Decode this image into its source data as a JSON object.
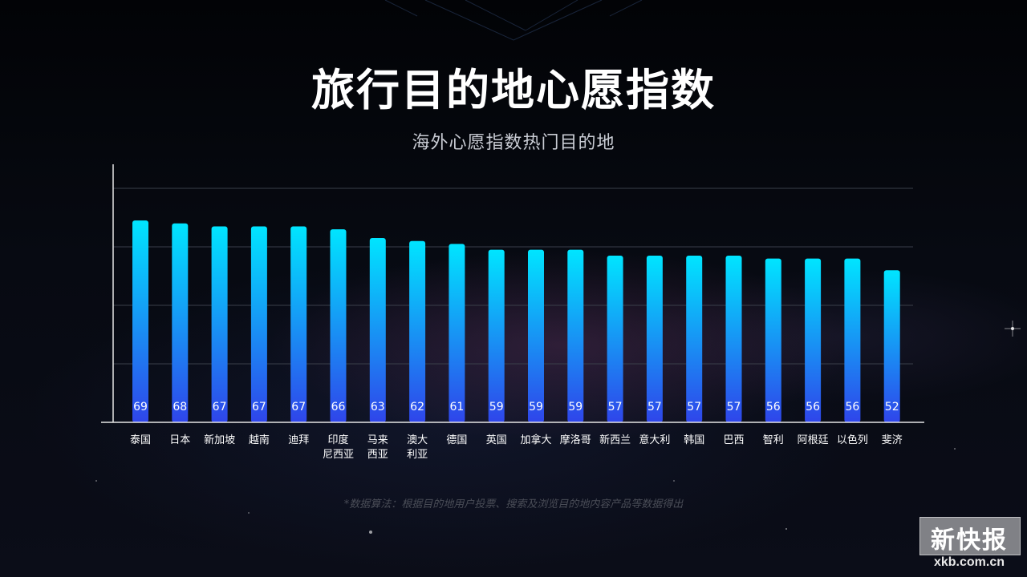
{
  "title": "旅行目的地心愿指数",
  "subtitle": "海外心愿指数热门目的地",
  "footnote": "*数据算法：根据目的地用户投票、搜索及浏览目的地内容产品等数据得出",
  "watermark": {
    "name": "新快报",
    "url": "xkb.com.cn"
  },
  "colors": {
    "bar_top": "#00e5ff",
    "bar_bottom": "#2f45ea",
    "gridline": "#3a3f4a",
    "axis": "#e6e6e6",
    "label": "#ffffff"
  },
  "chart_data": {
    "type": "bar",
    "title": "旅行目的地心愿指数",
    "subtitle": "海外心愿指数热门目的地",
    "categories": [
      "泰国",
      "日本",
      "新加坡",
      "越南",
      "迪拜",
      "印度尼西亚",
      "马来西亚",
      "澳大利亚",
      "德国",
      "英国",
      "加拿大",
      "摩洛哥",
      "新西兰",
      "意大利",
      "韩国",
      "巴西",
      "智利",
      "阿根廷",
      "以色列",
      "斐济"
    ],
    "category_lines": [
      [
        "泰国"
      ],
      [
        "日本"
      ],
      [
        "新加坡"
      ],
      [
        "越南"
      ],
      [
        "迪拜"
      ],
      [
        "印度",
        "尼西亚"
      ],
      [
        "马来",
        "西亚"
      ],
      [
        "澳大",
        "利亚"
      ],
      [
        "德国"
      ],
      [
        "英国"
      ],
      [
        "加拿大"
      ],
      [
        "摩洛哥"
      ],
      [
        "新西兰"
      ],
      [
        "意大利"
      ],
      [
        "韩国"
      ],
      [
        "巴西"
      ],
      [
        "智利"
      ],
      [
        "阿根廷"
      ],
      [
        "以色列"
      ],
      [
        "斐济"
      ]
    ],
    "values": [
      69,
      68,
      67,
      67,
      67,
      66,
      63,
      62,
      61,
      59,
      59,
      59,
      57,
      57,
      57,
      57,
      56,
      56,
      56,
      52
    ],
    "ylim": [
      0,
      80
    ],
    "yticks": [
      20,
      40,
      60,
      80
    ],
    "grid": true,
    "legend": "none",
    "data_labels": "inside-bottom"
  }
}
